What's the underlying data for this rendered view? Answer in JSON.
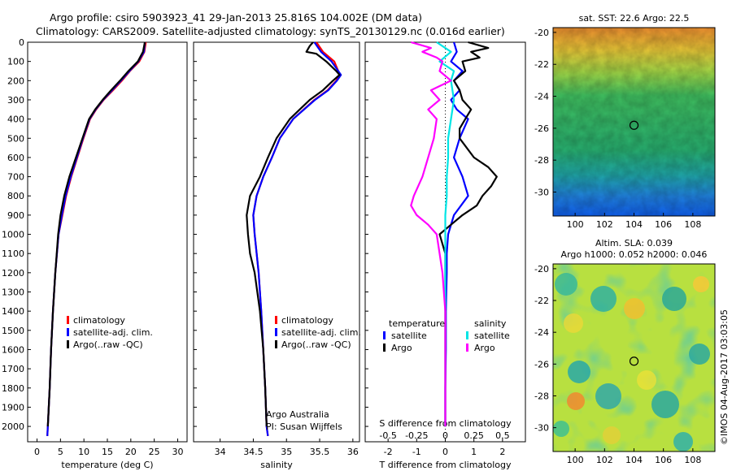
{
  "header": {
    "line1": "Argo profile: csiro 5903923_41 29-Jan-2013 25.816S 104.002E (DM data)",
    "line2": "Climatology: CARS2009. Satellite-adjusted climatology: synTS_20130129.nc (0.016d earlier)"
  },
  "sidebar_text": "©IMOS 04-Aug-2017 03:03:05",
  "colors": {
    "climatology": "#ff0000",
    "satellite": "#0000ff",
    "argo": "#000000",
    "sat_salinity": "#00e5e5",
    "argo_salinity": "#ff00ff"
  },
  "chart_data": [
    {
      "type": "line",
      "xlabel": "temperature (deg C)",
      "ylim": [
        2080,
        0
      ],
      "xlim": [
        -2,
        32
      ],
      "xticks": [
        0,
        5,
        10,
        15,
        20,
        25,
        30
      ],
      "yticks": [
        0,
        100,
        200,
        300,
        400,
        500,
        600,
        700,
        800,
        900,
        1000,
        1100,
        1200,
        1300,
        1400,
        1500,
        1600,
        1700,
        1800,
        1900,
        2000
      ],
      "legend": [
        "climatology",
        "satellite-adj. clim.",
        "Argo(..raw -QC)"
      ],
      "legend_position": "lower-left",
      "series": [
        {
          "name": "climatology",
          "color": "#ff0000",
          "depth": [
            0,
            50,
            100,
            150,
            200,
            250,
            300,
            350,
            400,
            500,
            600,
            700,
            800,
            900,
            1000,
            1200,
            1400,
            1600,
            1800,
            2000,
            2050
          ],
          "values": [
            23.2,
            22.9,
            21.8,
            19.8,
            18.1,
            16.2,
            14.2,
            12.6,
            11.3,
            9.9,
            8.6,
            7.3,
            6.2,
            5.4,
            4.6,
            3.9,
            3.4,
            3.0,
            2.7,
            2.3,
            2.2
          ]
        },
        {
          "name": "satellite-adj. clim.",
          "color": "#0000ff",
          "depth": [
            0,
            50,
            100,
            150,
            200,
            250,
            300,
            350,
            400,
            500,
            600,
            700,
            800,
            900,
            1000,
            1200,
            1400,
            1600,
            1800,
            2000,
            2050
          ],
          "values": [
            23.0,
            22.8,
            21.6,
            19.7,
            17.9,
            16.0,
            14.1,
            12.5,
            11.2,
            9.8,
            8.5,
            7.2,
            6.1,
            5.3,
            4.6,
            3.9,
            3.4,
            3.0,
            2.7,
            2.3,
            2.2
          ]
        },
        {
          "name": "Argo(..raw -QC)",
          "color": "#000000",
          "depth": [
            0,
            50,
            100,
            150,
            200,
            250,
            300,
            350,
            400,
            500,
            600,
            700,
            800,
            900,
            1000,
            1200,
            1400,
            1600,
            1800,
            2000
          ],
          "values": [
            23.0,
            22.6,
            21.5,
            19.5,
            17.7,
            15.8,
            14.0,
            12.4,
            11.1,
            9.7,
            8.3,
            6.9,
            5.8,
            5.0,
            4.5,
            3.9,
            3.4,
            3.0,
            2.7,
            2.3
          ]
        }
      ]
    },
    {
      "type": "line",
      "xlabel": "salinity",
      "ylim": [
        2080,
        0
      ],
      "xlim": [
        33.6,
        36.1
      ],
      "xticks": [
        34,
        34.5,
        35,
        35.5,
        36
      ],
      "legend": [
        "climatology",
        "satellite-adj. clim.",
        "Argo(..raw -QC)"
      ],
      "legend_position": "lower-right",
      "annotation": [
        "Argo Australia",
        "PI: Susan Wijffels"
      ],
      "series": [
        {
          "name": "climatology",
          "color": "#ff0000",
          "depth": [
            0,
            50,
            100,
            150,
            170,
            200,
            250,
            300,
            400,
            500,
            600,
            700,
            800,
            900,
            1000,
            1200,
            1400,
            1600,
            1800,
            2000,
            2050
          ],
          "values": [
            35.45,
            35.55,
            35.72,
            35.78,
            35.8,
            35.75,
            35.62,
            35.42,
            35.1,
            34.9,
            34.78,
            34.65,
            34.55,
            34.5,
            34.52,
            34.58,
            34.62,
            34.65,
            34.68,
            34.7,
            34.72
          ]
        },
        {
          "name": "satellite-adj. clim.",
          "color": "#0000ff",
          "depth": [
            0,
            50,
            100,
            150,
            170,
            200,
            250,
            300,
            400,
            500,
            600,
            700,
            800,
            900,
            1000,
            1200,
            1400,
            1600,
            1800,
            2000,
            2050
          ],
          "values": [
            35.42,
            35.52,
            35.68,
            35.78,
            35.82,
            35.76,
            35.63,
            35.43,
            35.1,
            34.9,
            34.78,
            34.65,
            34.55,
            34.5,
            34.52,
            34.58,
            34.62,
            34.65,
            34.68,
            34.7,
            34.72
          ]
        },
        {
          "name": "Argo(..raw -QC)",
          "color": "#000000",
          "depth": [
            0,
            20,
            50,
            60,
            100,
            150,
            170,
            200,
            250,
            300,
            400,
            500,
            600,
            700,
            800,
            900,
            1000,
            1100,
            1200,
            1400,
            1600,
            1800,
            2000
          ],
          "values": [
            35.4,
            35.35,
            35.3,
            35.45,
            35.6,
            35.75,
            35.8,
            35.7,
            35.55,
            35.35,
            35.05,
            34.85,
            34.72,
            34.6,
            34.45,
            34.4,
            34.42,
            34.45,
            34.52,
            34.6,
            34.65,
            34.68,
            34.7
          ]
        }
      ]
    },
    {
      "type": "line",
      "xlabel": "T difference from climatology",
      "xlim": [
        -2.8,
        2.8
      ],
      "xticks": [
        -2,
        -1,
        0,
        1,
        2
      ],
      "top_axis_label": "S difference from climatology",
      "top_axis_ticks": [
        "-0.5",
        "-0.25",
        "0",
        "0.25",
        "0.5"
      ],
      "legend_groups": [
        {
          "title": "temperature",
          "entries": [
            "satellite",
            "Argo"
          ]
        },
        {
          "title": "salinity",
          "entries": [
            "satellite",
            "Argo"
          ]
        }
      ],
      "legend_position": "lower-center",
      "series": [
        {
          "name": "temperature satellite",
          "color": "#0000ff",
          "depth": [
            0,
            50,
            100,
            150,
            200,
            250,
            300,
            350,
            400,
            500,
            600,
            700,
            800,
            900,
            1000,
            1100,
            1200,
            1400,
            1600,
            1800,
            2000
          ],
          "values": [
            0.3,
            0.4,
            0.2,
            0.6,
            0.3,
            0.5,
            0.2,
            0.4,
            0.8,
            0.5,
            0.3,
            0.6,
            0.8,
            0.3,
            0.1,
            0.05,
            0.05,
            0.02,
            0.02,
            0.0,
            0.0
          ]
        },
        {
          "name": "temperature Argo",
          "color": "#000000",
          "depth": [
            0,
            30,
            50,
            80,
            100,
            150,
            200,
            250,
            300,
            350,
            400,
            450,
            500,
            600,
            650,
            700,
            750,
            800,
            850,
            900,
            950,
            1000,
            1100,
            1200,
            1400,
            1600,
            1800,
            2000
          ],
          "values": [
            0.8,
            1.5,
            0.9,
            1.2,
            0.6,
            0.7,
            0.3,
            0.5,
            0.6,
            0.9,
            0.7,
            0.5,
            0.5,
            1.0,
            1.5,
            1.8,
            1.6,
            1.3,
            1.1,
            0.6,
            0.2,
            -0.2,
            0.0,
            0.0,
            0.0,
            0.0,
            0.0,
            0.0
          ]
        },
        {
          "name": "salinity satellite",
          "color": "#00e5e5",
          "depth": [
            0,
            50,
            100,
            150,
            200,
            300,
            400,
            500,
            600,
            700,
            800,
            900,
            1000,
            1200,
            1400,
            1600,
            1800,
            2000
          ],
          "values": [
            -0.3,
            0.2,
            -0.2,
            0.3,
            0.2,
            0.3,
            0.2,
            0.1,
            0.1,
            0.05,
            0.05,
            0.0,
            0.0,
            0.0,
            0.0,
            0.0,
            0.0,
            0.0
          ]
        },
        {
          "name": "salinity Argo",
          "color": "#ff00ff",
          "depth": [
            0,
            30,
            50,
            80,
            100,
            150,
            200,
            250,
            300,
            350,
            400,
            500,
            600,
            700,
            800,
            850,
            900,
            950,
            1000,
            1100,
            1200,
            1400,
            1600,
            1800,
            2000
          ],
          "values": [
            -1.2,
            -0.5,
            -0.8,
            -0.3,
            -0.1,
            -0.2,
            0.2,
            -0.5,
            -0.2,
            -0.6,
            -0.3,
            -0.4,
            -0.6,
            -0.8,
            -1.1,
            -1.2,
            -1.0,
            -0.6,
            -0.3,
            -0.2,
            -0.1,
            0.0,
            0.0,
            0.0,
            0.0
          ]
        }
      ]
    },
    {
      "type": "heatmap",
      "title": "sat. SST: 22.6  Argo: 22.5",
      "xticks": [
        100,
        102,
        104,
        106,
        108
      ],
      "yticks": [
        -20,
        -22,
        -24,
        -26,
        -28,
        -30
      ],
      "xlim": [
        98.5,
        109.5
      ],
      "ylim": [
        -31.5,
        -19.7
      ],
      "marker": {
        "lon": 104.002,
        "lat": -25.816
      }
    },
    {
      "type": "heatmap",
      "title": [
        "Altim. SLA: 0.039",
        "Argo h1000: 0.052 h2000: 0.046"
      ],
      "xticks": [
        100,
        102,
        104,
        106,
        108
      ],
      "yticks": [
        -20,
        -22,
        -24,
        -26,
        -28,
        -30
      ],
      "xlim": [
        98.5,
        109.5
      ],
      "ylim": [
        -31.5,
        -19.7
      ],
      "marker": {
        "lon": 104.002,
        "lat": -25.816
      }
    }
  ]
}
